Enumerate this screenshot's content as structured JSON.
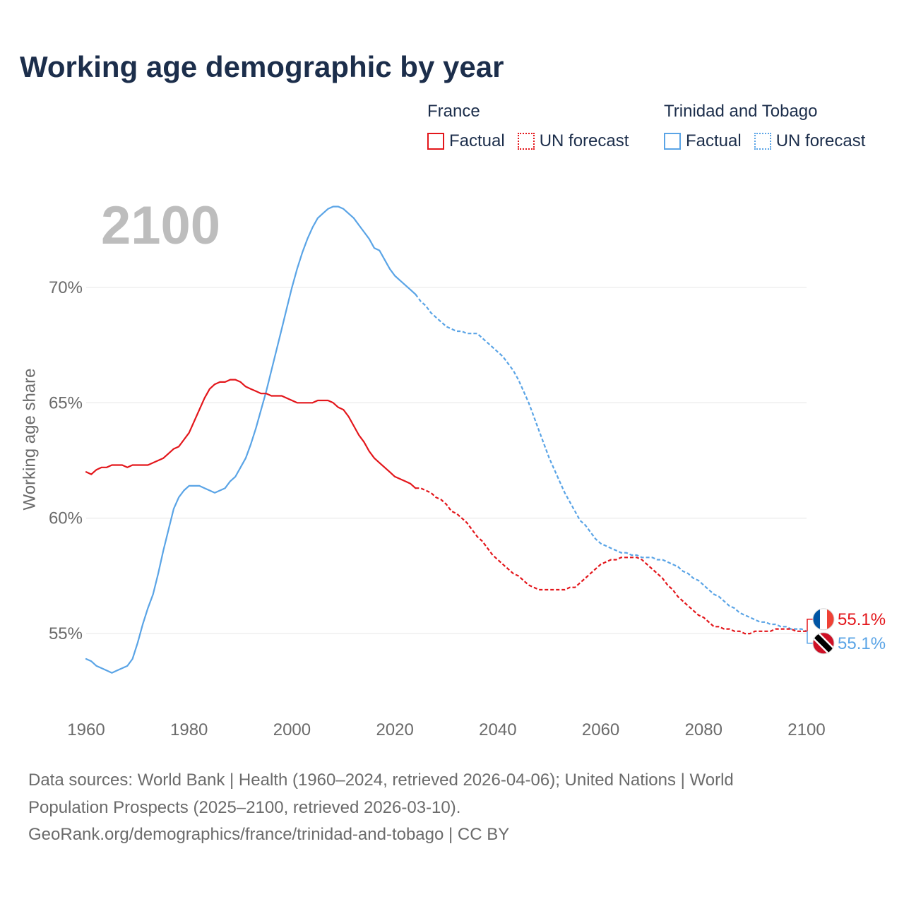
{
  "footer": {
    "lines": [
      "Data sources: World Bank | Health (1960–2024, retrieved 2026-04-06); United Nations | World",
      "Population Prospects (2025–2100, retrieved 2026-03-10).",
      "GeoRank.org/demographics/france/trinidad-and-tobago | CC BY"
    ]
  },
  "chart_data": {
    "type": "line",
    "title": "Working age demographic by year",
    "current_year_label": "2100",
    "xlabel": "",
    "ylabel": "Working age share",
    "xlim": [
      1960,
      2100
    ],
    "ylim": [
      52.8,
      74.8
    ],
    "grid": true,
    "legend": {
      "position": "top-right",
      "factual_label": "Factual",
      "forecast_label": "UN forecast"
    },
    "y_ticks": [
      {
        "value": 55,
        "label": "55%"
      },
      {
        "value": 60,
        "label": "60%"
      },
      {
        "value": 65,
        "label": "65%"
      },
      {
        "value": 70,
        "label": "70%"
      }
    ],
    "x_ticks": [
      {
        "value": 1960,
        "label": "1960"
      },
      {
        "value": 1980,
        "label": "1980"
      },
      {
        "value": 2000,
        "label": "2000"
      },
      {
        "value": 2020,
        "label": "2020"
      },
      {
        "value": 2040,
        "label": "2040"
      },
      {
        "value": 2060,
        "label": "2060"
      },
      {
        "value": 2080,
        "label": "2080"
      },
      {
        "value": 2100,
        "label": "2100"
      }
    ],
    "series": [
      {
        "id": "france",
        "name": "France",
        "color": "#e3161b",
        "flag_icon": "france-flag-icon",
        "end_label": "55.1%",
        "factual": {
          "start_year": 1960,
          "values": [
            62.0,
            61.9,
            62.1,
            62.2,
            62.2,
            62.3,
            62.3,
            62.3,
            62.2,
            62.3,
            62.3,
            62.3,
            62.3,
            62.4,
            62.5,
            62.6,
            62.8,
            63.0,
            63.1,
            63.4,
            63.7,
            64.2,
            64.7,
            65.2,
            65.6,
            65.8,
            65.9,
            65.9,
            66.0,
            66.0,
            65.9,
            65.7,
            65.6,
            65.5,
            65.4,
            65.4,
            65.3,
            65.3,
            65.3,
            65.2,
            65.1,
            65.0,
            65.0,
            65.0,
            65.0,
            65.1,
            65.1,
            65.1,
            65.0,
            64.8,
            64.7,
            64.4,
            64.0,
            63.6,
            63.3,
            62.9,
            62.6,
            62.4,
            62.2,
            62.0,
            61.8,
            61.7,
            61.6,
            61.5,
            61.3
          ]
        },
        "forecast": {
          "start_year": 2025,
          "values": [
            61.3,
            61.2,
            61.1,
            60.9,
            60.8,
            60.6,
            60.3,
            60.2,
            60.0,
            59.8,
            59.5,
            59.2,
            59.0,
            58.7,
            58.4,
            58.2,
            58.0,
            57.8,
            57.6,
            57.5,
            57.3,
            57.1,
            57.0,
            56.9,
            56.9,
            56.9,
            56.9,
            56.9,
            56.9,
            57.0,
            57.0,
            57.2,
            57.4,
            57.6,
            57.8,
            58.0,
            58.1,
            58.2,
            58.2,
            58.3,
            58.3,
            58.3,
            58.3,
            58.2,
            58.0,
            57.8,
            57.6,
            57.4,
            57.1,
            56.9,
            56.6,
            56.4,
            56.2,
            56.0,
            55.8,
            55.7,
            55.5,
            55.3,
            55.3,
            55.2,
            55.2,
            55.1,
            55.1,
            55.0,
            55.0,
            55.1,
            55.1,
            55.1,
            55.1,
            55.2,
            55.2,
            55.2,
            55.2,
            55.1,
            55.1,
            55.1
          ]
        }
      },
      {
        "id": "trinidad-and-tobago",
        "name": "Trinidad and Tobago",
        "color": "#5aa4e6",
        "flag_icon": "trinidad-and-tobago-flag-icon",
        "end_label": "55.1%",
        "factual": {
          "start_year": 1960,
          "values": [
            53.9,
            53.8,
            53.6,
            53.5,
            53.4,
            53.3,
            53.4,
            53.5,
            53.6,
            53.9,
            54.6,
            55.4,
            56.1,
            56.7,
            57.6,
            58.6,
            59.5,
            60.4,
            60.9,
            61.2,
            61.4,
            61.4,
            61.4,
            61.3,
            61.2,
            61.1,
            61.2,
            61.3,
            61.6,
            61.8,
            62.2,
            62.6,
            63.2,
            63.9,
            64.7,
            65.5,
            66.4,
            67.3,
            68.2,
            69.1,
            70.0,
            70.8,
            71.5,
            72.1,
            72.6,
            73.0,
            73.2,
            73.4,
            73.5,
            73.5,
            73.4,
            73.2,
            73.0,
            72.7,
            72.4,
            72.1,
            71.7,
            71.6,
            71.2,
            70.8,
            70.5,
            70.3,
            70.1,
            69.9,
            69.7
          ]
        },
        "forecast": {
          "start_year": 2025,
          "values": [
            69.4,
            69.2,
            68.9,
            68.7,
            68.5,
            68.3,
            68.2,
            68.1,
            68.1,
            68.0,
            68.0,
            68.0,
            67.8,
            67.6,
            67.4,
            67.2,
            67.0,
            66.7,
            66.4,
            66.0,
            65.5,
            65.0,
            64.4,
            63.8,
            63.2,
            62.6,
            62.1,
            61.6,
            61.1,
            60.7,
            60.3,
            59.9,
            59.7,
            59.4,
            59.1,
            58.9,
            58.8,
            58.7,
            58.6,
            58.5,
            58.5,
            58.4,
            58.4,
            58.3,
            58.3,
            58.3,
            58.2,
            58.2,
            58.1,
            58.0,
            57.9,
            57.7,
            57.6,
            57.4,
            57.3,
            57.1,
            56.9,
            56.7,
            56.6,
            56.4,
            56.2,
            56.1,
            55.9,
            55.8,
            55.7,
            55.6,
            55.5,
            55.5,
            55.4,
            55.4,
            55.3,
            55.3,
            55.2,
            55.2,
            55.2,
            55.1
          ]
        }
      }
    ]
  }
}
